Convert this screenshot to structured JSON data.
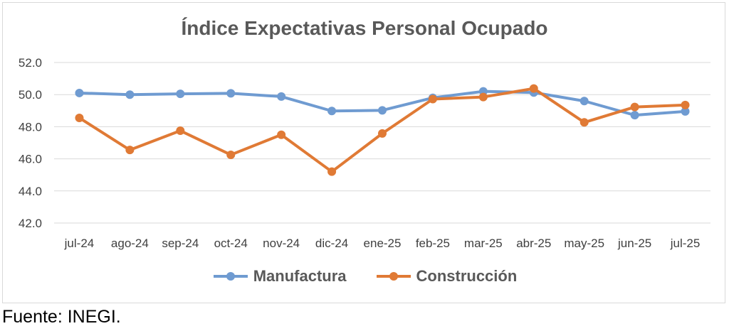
{
  "chart_data": {
    "type": "line",
    "title": "Índice Expectativas Personal Ocupado",
    "categories": [
      "jul-24",
      "ago-24",
      "sep-24",
      "oct-24",
      "nov-24",
      "dic-24",
      "ene-25",
      "feb-25",
      "mar-25",
      "abr-25",
      "may-25",
      "jun-25",
      "jul-25"
    ],
    "series": [
      {
        "name": "Manufactura",
        "color": "#6f9bd1",
        "values": [
          50.1,
          50.0,
          50.05,
          50.08,
          49.88,
          48.98,
          49.02,
          49.8,
          50.2,
          50.13,
          49.6,
          48.72,
          48.95
        ]
      },
      {
        "name": "Construcción",
        "color": "#e07a35",
        "values": [
          48.55,
          46.55,
          47.75,
          46.25,
          47.5,
          45.2,
          47.58,
          49.72,
          49.85,
          50.38,
          48.27,
          49.23,
          49.35
        ]
      }
    ],
    "ylim": [
      42.0,
      52.0
    ],
    "yticks": [
      "42.0",
      "44.0",
      "46.0",
      "48.0",
      "50.0",
      "52.0"
    ],
    "grid": true,
    "legend": "bottom"
  },
  "source": "Fuente: INEGI."
}
